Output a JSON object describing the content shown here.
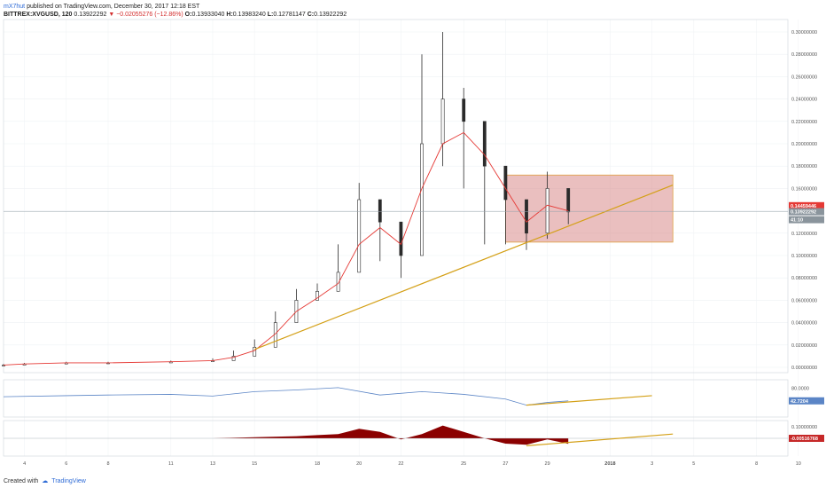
{
  "header": {
    "author": "mX7hut",
    "published": "published on TradingView.com, December 30, 2017 12:18 EST",
    "symbol": "BITTREX:XVGUSD, 120",
    "last": "0.13922292",
    "change": "−0.02055276 (−12.86%)",
    "ohlc": {
      "o": "0.13933040",
      "h": "0.13983240",
      "l": "0.12781147",
      "c": "0.13922292"
    }
  },
  "footer": {
    "created_with": "Created with",
    "brand": "TradingView"
  },
  "axes": {
    "price_ticks": [
      "0.30000000",
      "0.28000000",
      "0.26000000",
      "0.24000000",
      "0.22000000",
      "0.20000000",
      "0.18000000",
      "0.16000000",
      "0.14000000",
      "0.12000000",
      "0.10000000",
      "0.08000000",
      "0.06000000",
      "0.04000000",
      "0.02000000",
      "0.00000000"
    ],
    "rsi_tick": "80.0000",
    "macd_tick": "0.10000000",
    "time_ticks": [
      "4",
      "6",
      "8",
      "11",
      "13",
      "15",
      "18",
      "20",
      "22",
      "25",
      "27",
      "29",
      "2018",
      "3",
      "5",
      "8",
      "10"
    ]
  },
  "labels": {
    "price_red": "0.14459446",
    "price_grey": "0.13922292",
    "countdown": "41:10",
    "rsi_value": "42.7204",
    "macd_value": "-0.00516768"
  },
  "colors": {
    "candle": "#2b2b2b",
    "ma": "#e53935",
    "box_fill": "#d98a8a",
    "box_border": "#e0a040",
    "trendline": "#d4a017",
    "rsi": "#5b85c6",
    "macd_hist": "#8b0000"
  },
  "chart_data": [
    {
      "type": "line",
      "name": "price-candles",
      "xlabel": "",
      "ylabel": "",
      "ylim": [
        0,
        0.3
      ],
      "x": [
        "Dec 3",
        "Dec 4",
        "Dec 6",
        "Dec 8",
        "Dec 11",
        "Dec 13",
        "Dec 14",
        "Dec 15",
        "Dec 16",
        "Dec 17",
        "Dec 18",
        "Dec 19",
        "Dec 20",
        "Dec 21",
        "Dec 22",
        "Dec 23",
        "Dec 24",
        "Dec 25",
        "Dec 26",
        "Dec 27",
        "Dec 28",
        "Dec 29",
        "Dec 30"
      ],
      "close": [
        0.002,
        0.003,
        0.004,
        0.004,
        0.005,
        0.006,
        0.01,
        0.018,
        0.04,
        0.06,
        0.068,
        0.085,
        0.15,
        0.13,
        0.1,
        0.2,
        0.24,
        0.22,
        0.18,
        0.15,
        0.12,
        0.16,
        0.139
      ],
      "high": [
        0.003,
        0.004,
        0.005,
        0.005,
        0.006,
        0.008,
        0.015,
        0.025,
        0.05,
        0.07,
        0.075,
        0.11,
        0.165,
        0.15,
        0.12,
        0.28,
        0.3,
        0.25,
        0.2,
        0.18,
        0.15,
        0.175,
        0.15
      ],
      "low": [
        0.001,
        0.002,
        0.003,
        0.003,
        0.004,
        0.005,
        0.008,
        0.015,
        0.03,
        0.05,
        0.06,
        0.07,
        0.1,
        0.095,
        0.08,
        0.11,
        0.18,
        0.16,
        0.11,
        0.11,
        0.105,
        0.115,
        0.128
      ],
      "moving_average": [
        0.002,
        0.003,
        0.004,
        0.004,
        0.005,
        0.006,
        0.009,
        0.015,
        0.03,
        0.05,
        0.062,
        0.075,
        0.11,
        0.125,
        0.11,
        0.16,
        0.2,
        0.21,
        0.19,
        0.16,
        0.13,
        0.145,
        0.14
      ],
      "box": {
        "from": "Dec 27",
        "to": "Jan 4",
        "top": 0.172,
        "bottom": 0.112
      },
      "trendline": {
        "from": [
          "Dec 15",
          0.016
        ],
        "to": [
          "Jan 4",
          0.163
        ]
      }
    },
    {
      "type": "line",
      "name": "rsi",
      "ylim": [
        0,
        100
      ],
      "x": [
        "Dec 3",
        "Dec 6",
        "Dec 8",
        "Dec 11",
        "Dec 13",
        "Dec 15",
        "Dec 17",
        "Dec 19",
        "Dec 21",
        "Dec 23",
        "Dec 25",
        "Dec 27",
        "Dec 28",
        "Dec 29",
        "Dec 30"
      ],
      "values": [
        55,
        58,
        60,
        62,
        57,
        70,
        75,
        82,
        60,
        70,
        62,
        48,
        30,
        38,
        42.72
      ],
      "trendline": {
        "from": [
          "Dec 28",
          30
        ],
        "to": [
          "Jan 3",
          58
        ]
      }
    },
    {
      "type": "area",
      "name": "macd-histogram",
      "ylim": [
        -0.015,
        0.015
      ],
      "x": [
        "Dec 3",
        "Dec 13",
        "Dec 15",
        "Dec 17",
        "Dec 18",
        "Dec 19",
        "Dec 20",
        "Dec 21",
        "Dec 22",
        "Dec 23",
        "Dec 24",
        "Dec 25",
        "Dec 26",
        "Dec 27",
        "Dec 28",
        "Dec 29",
        "Dec 30"
      ],
      "values": [
        0,
        0,
        0.001,
        0.002,
        0.003,
        0.004,
        0.009,
        0.006,
        -0.001,
        0.004,
        0.012,
        0.006,
        0,
        -0.005,
        -0.006,
        -0.001,
        -0.00516768
      ],
      "trendline": {
        "from": [
          "Dec 28",
          -0.007
        ],
        "to": [
          "Jan 4",
          0.004
        ]
      }
    }
  ]
}
